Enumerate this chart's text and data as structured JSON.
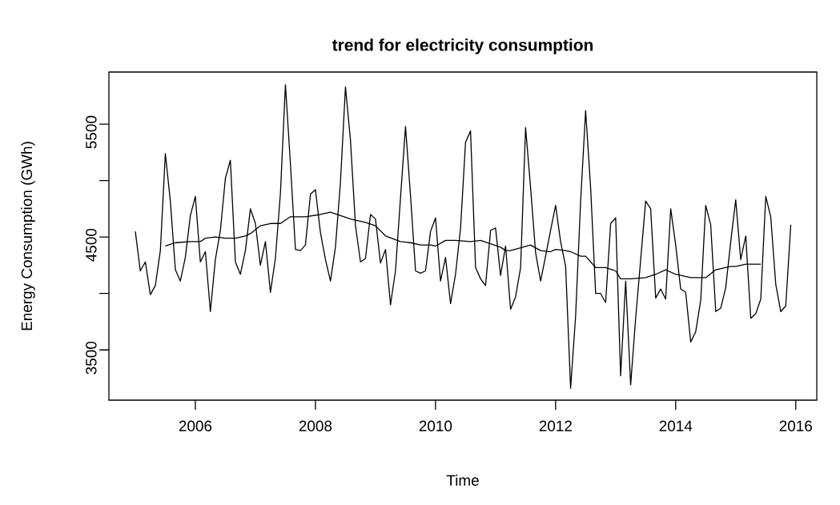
{
  "chart_data": {
    "type": "line",
    "title": "trend for electricity consumption",
    "xlabel": "Time",
    "ylabel": "Energy Consumption (GWh)",
    "x": [
      2005,
      2005.083,
      2005.167,
      2005.25,
      2005.333,
      2005.417,
      2005.5,
      2005.583,
      2005.667,
      2005.75,
      2005.833,
      2005.917,
      2006,
      2006.083,
      2006.167,
      2006.25,
      2006.333,
      2006.417,
      2006.5,
      2006.583,
      2006.667,
      2006.75,
      2006.833,
      2006.917,
      2007,
      2007.083,
      2007.167,
      2007.25,
      2007.333,
      2007.417,
      2007.5,
      2007.583,
      2007.667,
      2007.75,
      2007.833,
      2007.917,
      2008,
      2008.083,
      2008.167,
      2008.25,
      2008.333,
      2008.417,
      2008.5,
      2008.583,
      2008.667,
      2008.75,
      2008.833,
      2008.917,
      2009,
      2009.083,
      2009.167,
      2009.25,
      2009.333,
      2009.417,
      2009.5,
      2009.583,
      2009.667,
      2009.75,
      2009.833,
      2009.917,
      2010,
      2010.083,
      2010.167,
      2010.25,
      2010.333,
      2010.417,
      2010.5,
      2010.583,
      2010.667,
      2010.75,
      2010.833,
      2010.917,
      2011,
      2011.083,
      2011.167,
      2011.25,
      2011.333,
      2011.417,
      2011.5,
      2011.583,
      2011.667,
      2011.75,
      2011.833,
      2011.917,
      2012,
      2012.083,
      2012.167,
      2012.25,
      2012.333,
      2012.417,
      2012.5,
      2012.583,
      2012.667,
      2012.75,
      2012.833,
      2012.917,
      2013,
      2013.083,
      2013.167,
      2013.25,
      2013.333,
      2013.417,
      2013.5,
      2013.583,
      2013.667,
      2013.75,
      2013.833,
      2013.917,
      2014,
      2014.083,
      2014.167,
      2014.25,
      2014.333,
      2014.417,
      2014.5,
      2014.583,
      2014.667,
      2014.75,
      2014.833,
      2014.917,
      2015,
      2015.083,
      2015.167,
      2015.25,
      2015.333,
      2015.417,
      2015.5,
      2015.583,
      2015.667,
      2015.75,
      2015.833,
      2015.917
    ],
    "series": [
      {
        "color": "#000000",
        "values": [
          4550,
          4200,
          4280,
          3990,
          4070,
          4380,
          5240,
          4820,
          4210,
          4110,
          4320,
          4690,
          4860,
          4280,
          4370,
          3840,
          4300,
          4560,
          5020,
          5180,
          4280,
          4170,
          4380,
          4750,
          4620,
          4250,
          4460,
          4010,
          4310,
          4890,
          5850,
          5150,
          4390,
          4380,
          4430,
          4880,
          4920,
          4540,
          4300,
          4110,
          4410,
          4990,
          5830,
          5360,
          4600,
          4280,
          4310,
          4700,
          4660,
          4270,
          4390,
          3900,
          4200,
          4850,
          5480,
          4870,
          4200,
          4180,
          4200,
          4550,
          4670,
          4110,
          4320,
          3910,
          4170,
          4580,
          5340,
          5440,
          4230,
          4130,
          4070,
          4560,
          4580,
          4160,
          4420,
          3860,
          3970,
          4230,
          5470,
          4940,
          4360,
          4110,
          4330,
          4560,
          4780,
          4460,
          4240,
          3160,
          3800,
          4820,
          5620,
          4940,
          4000,
          4000,
          3920,
          4620,
          4670,
          3270,
          4110,
          3190,
          3780,
          4300,
          4820,
          4750,
          3960,
          4040,
          3950,
          4750,
          4430,
          4040,
          4010,
          3570,
          3660,
          3940,
          4780,
          4610,
          3840,
          3870,
          4050,
          4460,
          4830,
          4300,
          4510,
          3780,
          3820,
          3950,
          4860,
          4680,
          4080,
          3840,
          3890,
          4610
        ]
      },
      {
        "color": "#000000",
        "x": [
          2005.5,
          2005.667,
          2005.917,
          2006.083,
          2006.167,
          2006.333,
          2006.5,
          2006.667,
          2006.833,
          2006.917,
          2007.083,
          2007.25,
          2007.417,
          2007.5,
          2007.583,
          2007.833,
          2008.083,
          2008.25,
          2008.417,
          2008.583,
          2008.833,
          2009,
          2009.167,
          2009.417,
          2009.583,
          2009.75,
          2009.917,
          2010,
          2010.167,
          2010.25,
          2010.333,
          2010.583,
          2010.75,
          2010.917,
          2011.083,
          2011.167,
          2011.25,
          2011.583,
          2011.75,
          2011.917,
          2012,
          2012.167,
          2012.25,
          2012.417,
          2012.5,
          2012.667,
          2012.833,
          2013,
          2013.083,
          2013.25,
          2013.5,
          2013.667,
          2013.833,
          2014,
          2014.25,
          2014.5,
          2014.667,
          2014.917,
          2015,
          2015.167,
          2015.417
        ],
        "values": [
          4420,
          4450,
          4460,
          4460,
          4490,
          4500,
          4490,
          4490,
          4510,
          4530,
          4600,
          4620,
          4620,
          4650,
          4680,
          4680,
          4700,
          4720,
          4690,
          4660,
          4630,
          4600,
          4510,
          4460,
          4450,
          4430,
          4430,
          4420,
          4470,
          4470,
          4470,
          4460,
          4470,
          4440,
          4410,
          4380,
          4380,
          4430,
          4380,
          4370,
          4390,
          4380,
          4370,
          4330,
          4330,
          4230,
          4230,
          4200,
          4130,
          4130,
          4140,
          4170,
          4210,
          4170,
          4140,
          4140,
          4210,
          4240,
          4240,
          4260,
          4260
        ]
      }
    ],
    "xlim": [
      2004.56,
      2016.35
    ],
    "xticks": [
      2006,
      2008,
      2010,
      2012,
      2014,
      2016
    ],
    "ylim": [
      3055,
      5962
    ],
    "yticks": [
      3500,
      {
        "value": 4000,
        "label": null
      },
      4500,
      {
        "value": 5000,
        "label": null
      },
      5500
    ]
  }
}
